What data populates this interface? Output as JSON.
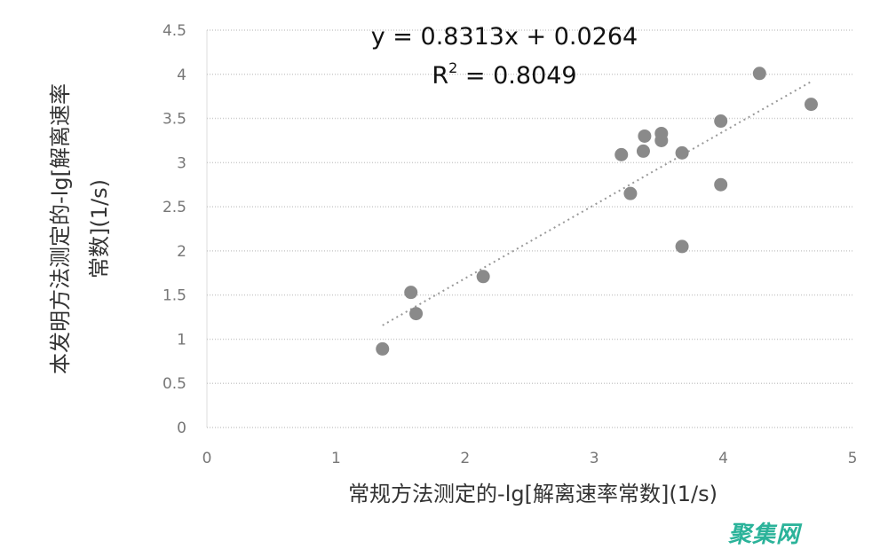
{
  "chart_data": {
    "type": "scatter",
    "title": "",
    "xlabel": "常规方法测定的-lg[解离速率常数](1/s)",
    "ylabel_lines": [
      "本发明方法测定的-lg[解离速率",
      "常数](1/s)"
    ],
    "xlim": [
      0,
      5
    ],
    "ylim": [
      0,
      4.5
    ],
    "xticks": [
      "0",
      "1",
      "2",
      "3",
      "4",
      "5"
    ],
    "yticks": [
      "0",
      "0.5",
      "1",
      "1.5",
      "2",
      "2.5",
      "3",
      "3.5",
      "4",
      "4.5"
    ],
    "grid": "horizontal dotted",
    "points": [
      [
        1.36,
        0.89
      ],
      [
        1.58,
        1.53
      ],
      [
        1.62,
        1.29
      ],
      [
        2.14,
        1.71
      ],
      [
        3.21,
        3.09
      ],
      [
        3.28,
        2.65
      ],
      [
        3.39,
        3.3
      ],
      [
        3.38,
        3.13
      ],
      [
        3.52,
        3.33
      ],
      [
        3.52,
        3.25
      ],
      [
        3.68,
        3.11
      ],
      [
        3.68,
        2.05
      ],
      [
        3.98,
        3.47
      ],
      [
        3.98,
        2.75
      ],
      [
        4.28,
        4.01
      ],
      [
        4.68,
        3.66
      ]
    ],
    "trendline": {
      "slope": 0.8313,
      "intercept": 0.0264,
      "x_range": [
        1.36,
        4.68
      ],
      "style": "dotted linear"
    },
    "equation": "y = 0.8313x + 0.0264",
    "r2_label": "R",
    "r2_sup": "2",
    "r2_value": " = 0.8049",
    "colors": {
      "points": "#8a8a8a",
      "trendline": "#999999",
      "grid": "#cccccc"
    }
  },
  "watermark": "聚集网"
}
